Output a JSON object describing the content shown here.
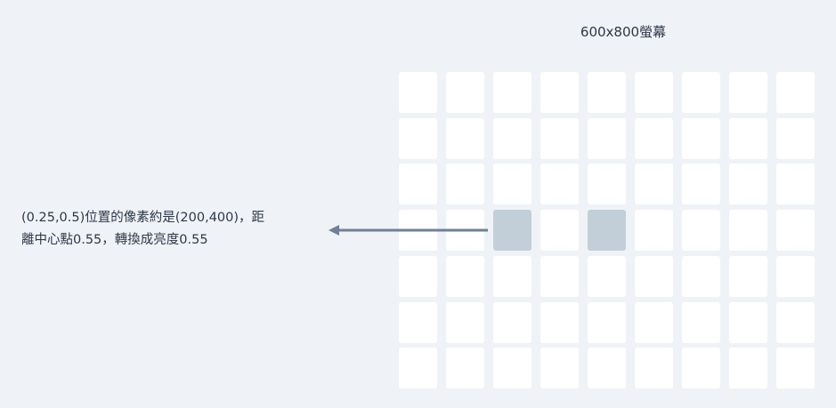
{
  "screen_title": "600x800螢幕",
  "grid": {
    "rows": 7,
    "cols": 9,
    "highlighted_cells": [
      [
        3,
        2
      ],
      [
        3,
        4
      ]
    ],
    "cell_color": "#ffffff",
    "highlight_color": "#c3cfd8"
  },
  "annotation": {
    "line1": "(0.25,0.5)位置的像素約是(200,400)，距",
    "line2": "離中心點0.55，轉換成亮度0.55"
  },
  "arrow_color": "#718096"
}
